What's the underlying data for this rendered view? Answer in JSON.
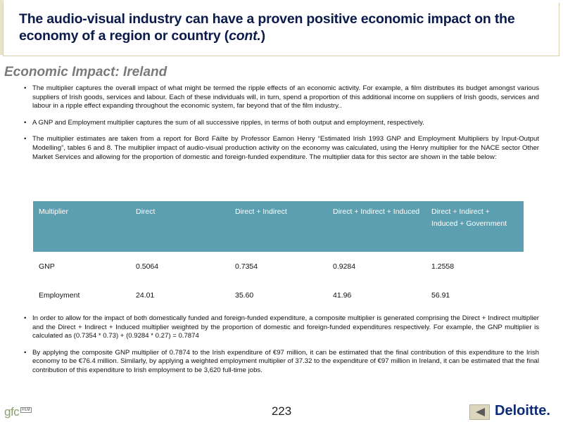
{
  "header": {
    "title_main": "The audio-visual industry can have a proven positive economic impact on the economy of a region or country (",
    "title_italic": "cont.",
    "title_end": ")"
  },
  "section_title": "Economic Impact: Ireland",
  "bullets_top": [
    "The multiplier captures the overall impact of what might be termed the ripple effects of an economic activity. For example, a film distributes its budget amongst various suppliers of Irish goods, services and labour. Each of these individuals will, in turn, spend a proportion of this additional income on suppliers of Irish goods, services and labour in a ripple effect expanding throughout the economic system, far beyond that of the film industry..",
    "A GNP and Employment multiplier captures the sum of all successive ripples, in terms of both output and employment, respectively.",
    "The multiplier estimates are taken from a report for Bord Fáilte by Professor Eamon Henry “Estimated Irish 1993 GNP and Employment Multipliers by Input-Output Modelling”, tables 6 and 8. The multiplier impact of audio-visual production activity on the economy was calculated, using the Henry multiplier for the NACE sector Other Market Services and allowing for the proportion of domestic and foreign-funded expenditure. The multiplier data for this sector are shown in the table below:"
  ],
  "table": {
    "headers": [
      "Multiplier",
      "Direct",
      "Direct + Indirect",
      "Direct + Indirect + Induced",
      "Direct + Indirect + Induced + Government"
    ],
    "rows": [
      [
        "GNP",
        "0.5064",
        "0.7354",
        "0.9284",
        "1.2558"
      ],
      [
        "Employment",
        "24.01",
        "35.60",
        "41.96",
        "56.91"
      ]
    ]
  },
  "bullets_bottom": [
    "In order to allow for the impact of both domestically funded and foreign-funded expenditure, a composite multiplier is generated comprising the Direct + Indirect multiplier and the Direct + Indirect + Induced multiplier weighted by the proportion of domestic and foreign-funded expenditures respectively. For example, the GNP multiplier is calculated as (0.7354 * 0.73) + (0.9284 * 0.27) = 0.7874",
    "By applying the composite GNP multiplier of 0.7874 to the Irish expenditure of €97 million, it can be estimated that the final contribution of this expenditure to the Irish economy to be €76.4 million. Similarly, by applying a weighted employment multiplier of 37.32 to the expenditure of €97 million in Ireland, it can be estimated that the final contribution of this expenditure to Irish employment to be 3,620 full-time jobs."
  ],
  "footer": {
    "page_number": "223",
    "left_logo_text": "gfc",
    "left_logo_badge": "FILM",
    "brand": "Deloitte.",
    "back_icon": "triangle-left-icon"
  },
  "colors": {
    "title": "#0a1a4a",
    "table_header": "#5b9fb0",
    "brand": "#0b2a78"
  }
}
